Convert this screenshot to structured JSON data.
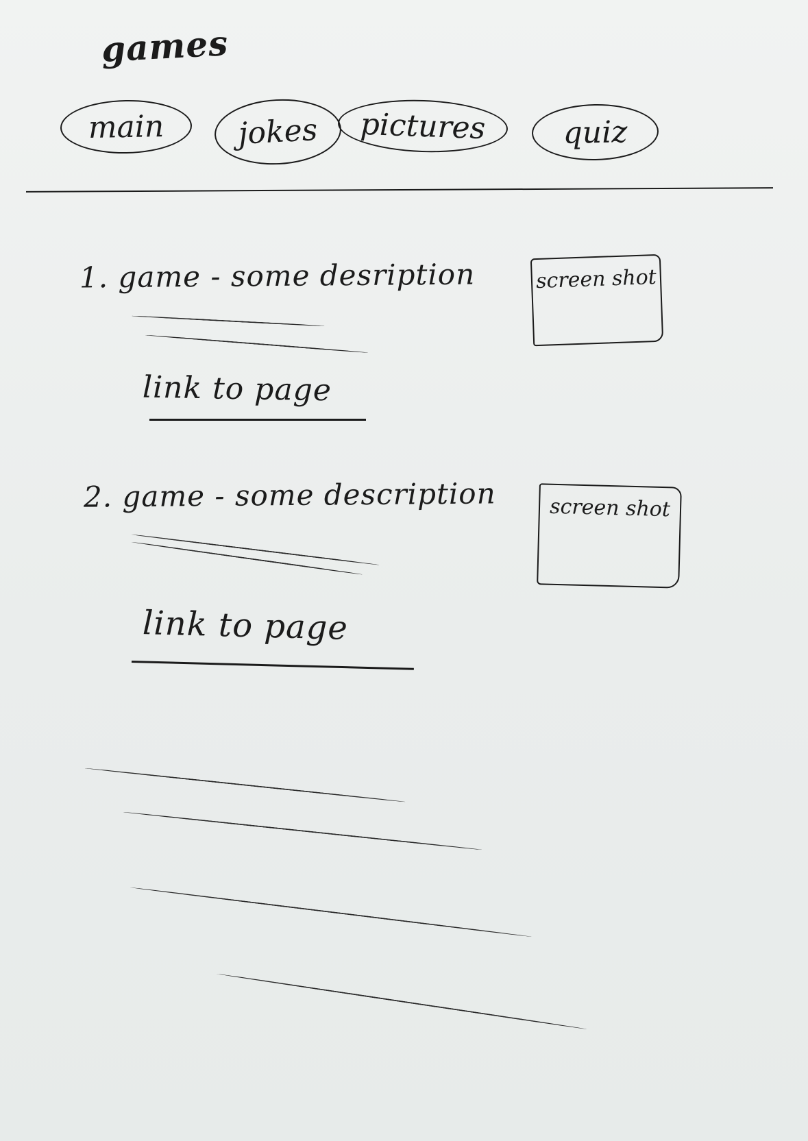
{
  "header": {
    "title": "games"
  },
  "nav": {
    "items": [
      {
        "label": "main"
      },
      {
        "label": "jokes"
      },
      {
        "label": "pictures"
      },
      {
        "label": "quiz"
      }
    ]
  },
  "entries": [
    {
      "title": "1. game - some desription",
      "link_label": "link to page",
      "screenshot_label": "screen shot"
    },
    {
      "title": "2. game - some description",
      "link_label": "link to page",
      "screenshot_label": "screen shot"
    }
  ],
  "colors": {
    "paper": "#ebeeed",
    "ink": "#1b1b1b"
  }
}
